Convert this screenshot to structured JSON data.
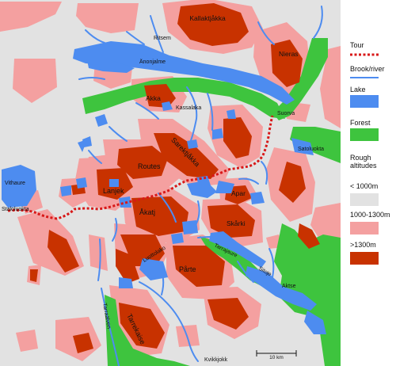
{
  "map": {
    "place_labels": {
      "kallaktjakka": "Kallaktjåkka",
      "ritsem": "Ritsem",
      "ananjalme": "Änonjalme",
      "nieras": "Nieras",
      "akka": "Akka",
      "kassalaka": "Kassalaka",
      "suorva": "Suorva",
      "sarektjakka": "Sarektjåkka",
      "routes": "Routes",
      "satoluokta": "Satoluokta",
      "vithaure": "Vithaure",
      "lanjek": "Lanjek",
      "akatj": "Åkatj",
      "apar": "Apar",
      "skarki": "Skårki",
      "staloluokta": "Staloluokta",
      "tarrajaure": "Tarrajaure",
      "luottolako": "Luottolako",
      "parte": "Pårte",
      "sitoje": "Sitoje",
      "aktse": "Aktse",
      "tarraalven": "Tarraälven",
      "tarrekaise": "Tarrekaise",
      "kvikkjokk": "Kvikkjokk"
    },
    "scale_label": "10 km"
  },
  "legend": {
    "tour": "Tour",
    "brook": "Brook/river",
    "lake": "Lake",
    "forest": "Forest",
    "rough_heading": "Rough altitudes",
    "low": "< 1000m",
    "mid": "1000-1300m",
    "high": ">1300m"
  },
  "colors": {
    "low": "#e2e2e2",
    "mid": "#f4a0a0",
    "high": "#c83200",
    "lake": "#4d8cf0",
    "forest": "#3ec43e",
    "tour": "#d81818"
  }
}
